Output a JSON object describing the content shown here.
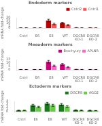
{
  "chart_data": [
    {
      "type": "bar",
      "title": "Endoderm markers",
      "ylabel": "mRNA fold-change",
      "categories": [
        "Cntrl",
        "E6",
        "E8",
        "WT",
        "DGCR8\nKO-1",
        "DGCR8\nKO-2"
      ],
      "series": [
        {
          "name": "Cntrl2",
          "color": "#bb0000",
          "values": [
            0.5,
            0.5,
            15.0,
            10.0,
            0.8,
            0.6
          ],
          "errors": [
            0.05,
            0.05,
            2.5,
            1.5,
            0.15,
            0.1
          ]
        },
        {
          "name": "Cntrl1",
          "color": "#ff5555",
          "values": [
            0.5,
            0.5,
            8.0,
            6.0,
            0.5,
            0.4
          ],
          "errors": [
            0.05,
            0.05,
            1.5,
            1.0,
            0.1,
            0.05
          ]
        }
      ],
      "ylim": [
        0,
        20
      ],
      "yticks": [
        0,
        5,
        10,
        15,
        20
      ],
      "grid": false,
      "legend": "upper right"
    },
    {
      "type": "bar",
      "title": "Mesoderm markers",
      "ylabel": "mRNA fold-change",
      "categories": [
        "Cntrl",
        "E6",
        "E8",
        "WT",
        "DGCR8\nKO-1",
        "DGCR8\nKO-2"
      ],
      "series": [
        {
          "name": "Brachyury",
          "color": "#cc0077",
          "values": [
            0.5,
            0.5,
            12.0,
            8.0,
            0.7,
            0.5
          ],
          "errors": [
            0.05,
            0.05,
            2.0,
            1.5,
            0.1,
            0.05
          ]
        },
        {
          "name": "APLNR",
          "color": "#ff66cc",
          "values": [
            0.5,
            0.5,
            6.0,
            4.0,
            0.5,
            0.4
          ],
          "errors": [
            0.05,
            0.05,
            1.0,
            0.8,
            0.1,
            0.05
          ]
        }
      ],
      "ylim": [
        0,
        15
      ],
      "yticks": [
        0,
        5,
        10,
        15
      ],
      "grid": false,
      "legend": "upper right"
    },
    {
      "type": "bar",
      "title": "Ectoderm markers",
      "ylabel": "mRNA fold-change",
      "categories": [
        "Cntrl",
        "E6",
        "E8",
        "WT",
        "DGCR8\nKO-1",
        "DGCR8\nKO-2"
      ],
      "series": [
        {
          "name": "DGCR8",
          "color": "#1a7a1a",
          "values": [
            0.5,
            2.5,
            3.2,
            2.8,
            0.6,
            0.5
          ],
          "errors": [
            0.05,
            0.4,
            0.5,
            0.4,
            0.1,
            0.05
          ]
        },
        {
          "name": "AGO2",
          "color": "#66cc44",
          "values": [
            0.5,
            1.8,
            2.5,
            2.0,
            0.5,
            0.4
          ],
          "errors": [
            0.05,
            0.3,
            0.4,
            0.3,
            0.1,
            0.05
          ]
        }
      ],
      "ylim": [
        0,
        4
      ],
      "yticks": [
        0,
        1,
        2,
        3,
        4
      ],
      "grid": false,
      "legend": "upper right"
    }
  ]
}
